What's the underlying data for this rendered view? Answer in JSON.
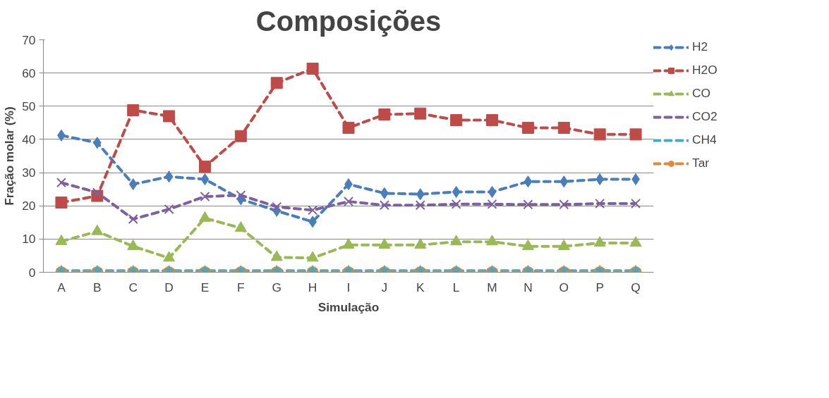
{
  "chart_data": {
    "type": "line",
    "title": "Composições",
    "xlabel": "Simulação",
    "ylabel": "Fração molar (%)",
    "categories": [
      "A",
      "B",
      "C",
      "D",
      "E",
      "F",
      "G",
      "H",
      "I",
      "J",
      "K",
      "L",
      "M",
      "N",
      "O",
      "P",
      "Q"
    ],
    "ylim": [
      0,
      70
    ],
    "yticks": [
      0,
      10,
      20,
      30,
      40,
      50,
      60,
      70
    ],
    "grid": "y",
    "legend": "right",
    "line_style": "dashed",
    "series": [
      {
        "name": "H2",
        "color": "#4a7ebb",
        "marker": "diamond",
        "values": [
          41.2,
          39,
          26.5,
          28.8,
          28,
          22,
          18.5,
          15.2,
          26.5,
          23.8,
          23.5,
          24.2,
          24.2,
          27.3,
          27.3,
          28,
          28
        ]
      },
      {
        "name": "H2O",
        "color": "#be4b48",
        "marker": "square",
        "values": [
          21,
          23,
          48.8,
          47,
          31.8,
          41,
          57,
          61.3,
          43.5,
          47.5,
          47.8,
          45.8,
          45.8,
          43.5,
          43.5,
          41.5,
          41.5
        ]
      },
      {
        "name": "CO",
        "color": "#98b954",
        "marker": "triangle",
        "values": [
          9.3,
          12.3,
          7.8,
          4.3,
          16.3,
          13.3,
          4.5,
          4.3,
          8.2,
          8.2,
          8.2,
          9.2,
          9.2,
          7.8,
          7.8,
          8.8,
          8.8
        ]
      },
      {
        "name": "CO2",
        "color": "#7d60a0",
        "marker": "cross",
        "values": [
          27,
          24,
          16,
          19,
          22.8,
          23.2,
          19.7,
          18.7,
          21.3,
          20.2,
          20.2,
          20.5,
          20.5,
          20.4,
          20.4,
          20.7,
          20.7
        ]
      },
      {
        "name": "CH4",
        "color": "#46aac5",
        "marker": "star",
        "values": [
          0.5,
          0.5,
          0.5,
          0.5,
          0.5,
          0.5,
          0.5,
          0.5,
          0.5,
          0.5,
          0.5,
          0.5,
          0.5,
          0.5,
          0.5,
          0.5,
          0.5
        ]
      },
      {
        "name": "Tar",
        "color": "#e0893a",
        "marker": "circle",
        "values": [
          0,
          0,
          0,
          0,
          0,
          0,
          0,
          0,
          0,
          0,
          0,
          0,
          0,
          0,
          0,
          0,
          0
        ]
      }
    ]
  }
}
